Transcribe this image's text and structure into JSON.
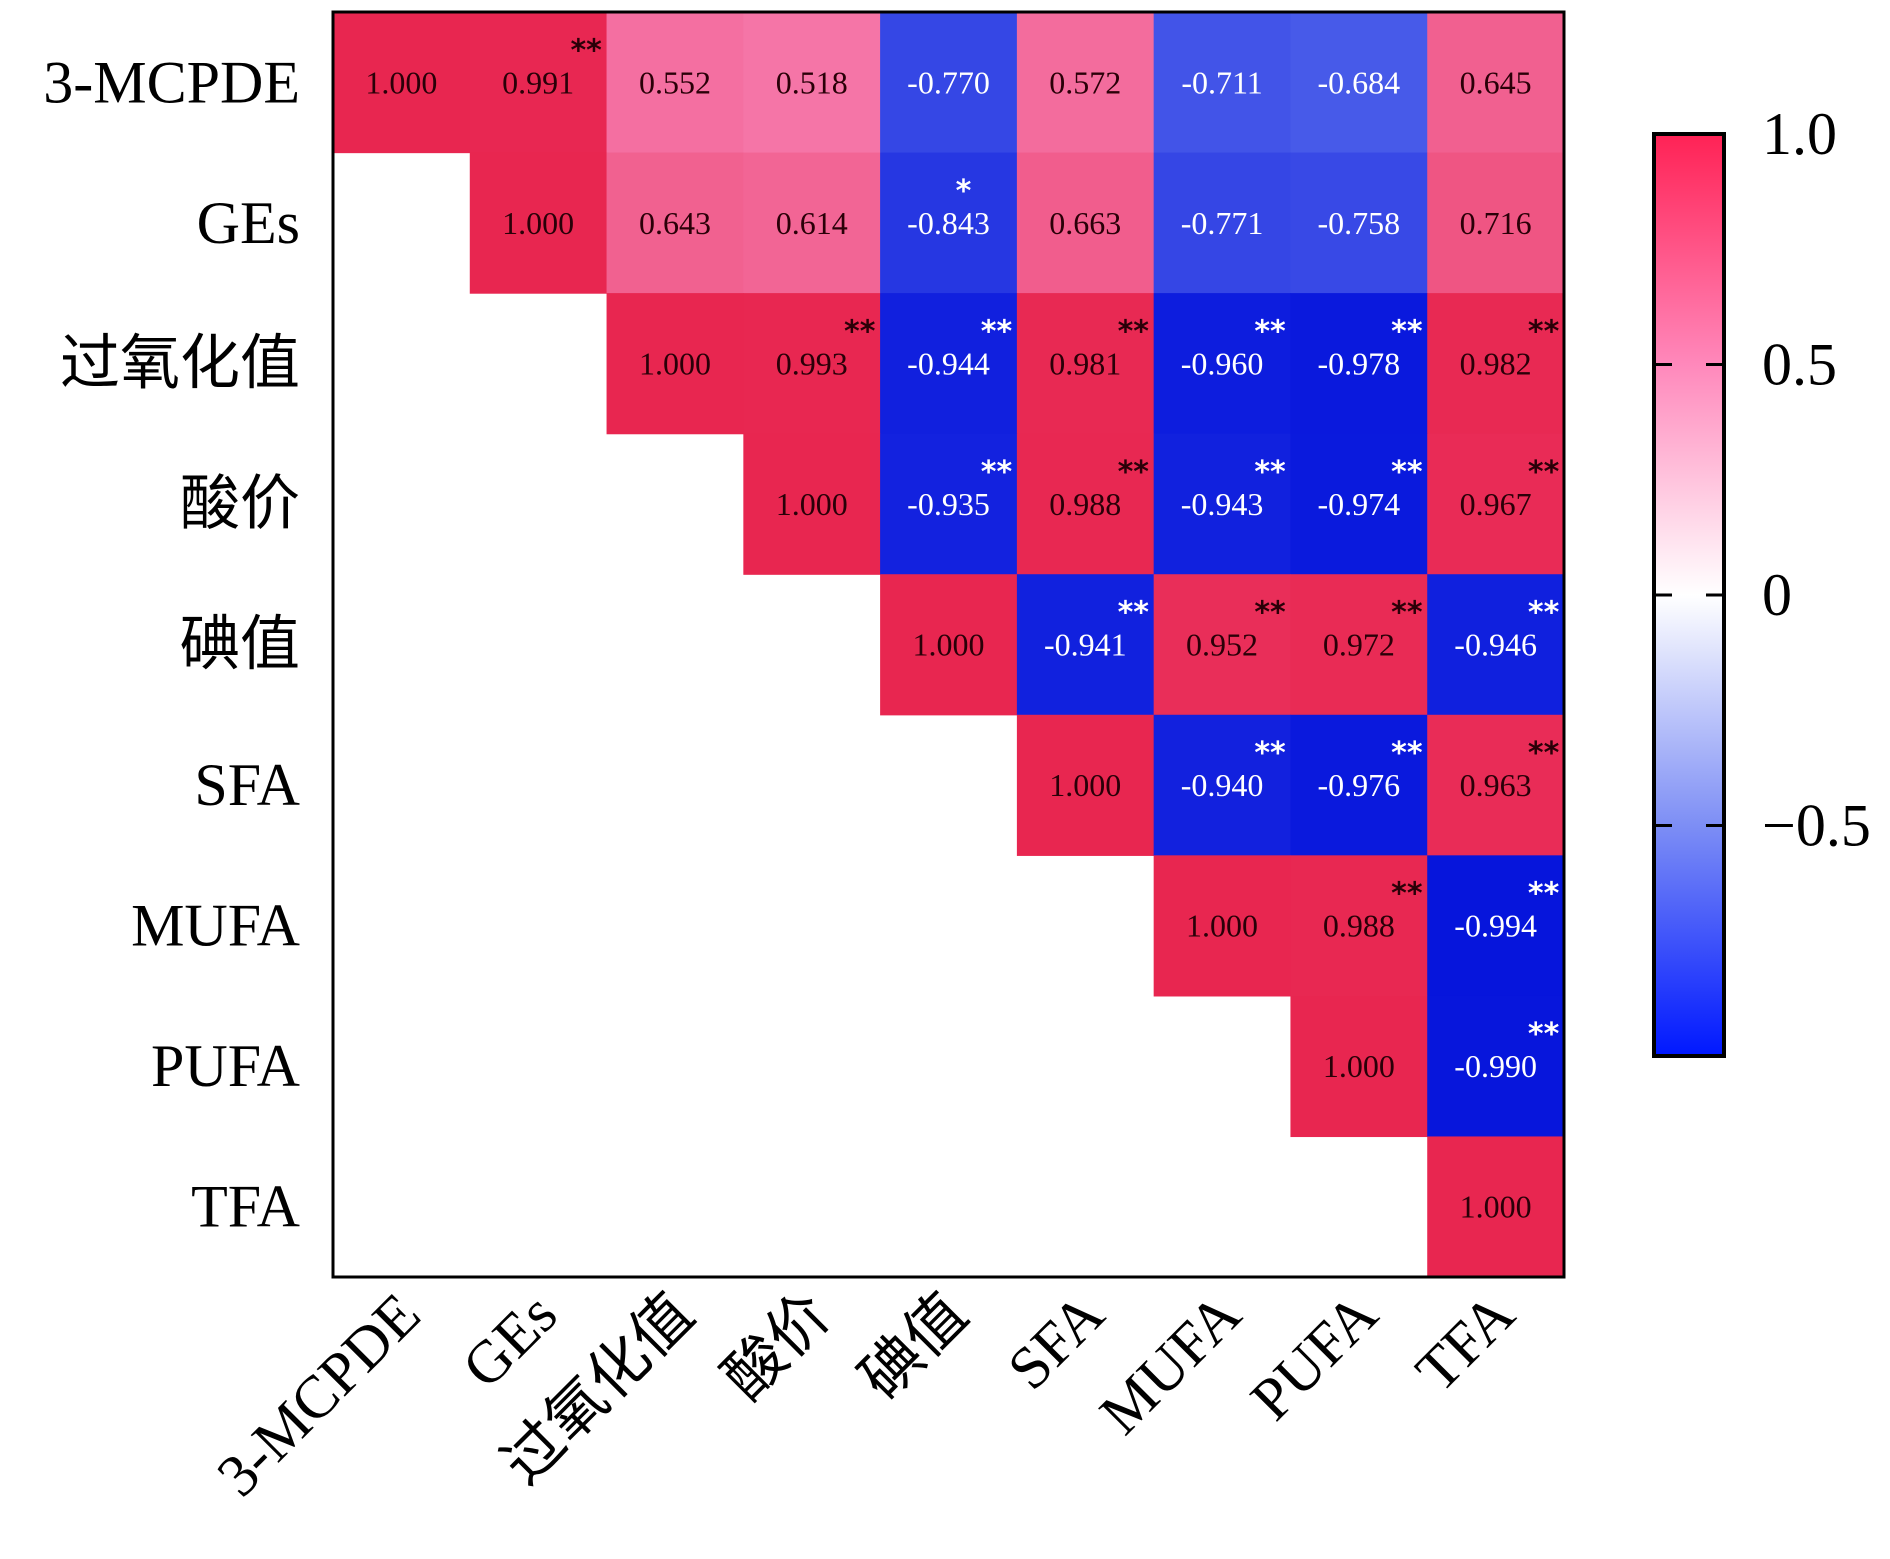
{
  "chart_data": {
    "type": "heatmap",
    "title": "",
    "variables": [
      "3-MCPDE",
      "GEs",
      "过氧化值",
      "酸价",
      "碘值",
      "SFA",
      "MUFA",
      "PUFA",
      "TFA"
    ],
    "matrix_shape": "upper-triangle",
    "values": [
      [
        1.0,
        0.991,
        0.552,
        0.518,
        -0.77,
        0.572,
        -0.711,
        -0.684,
        0.645
      ],
      [
        null,
        1.0,
        0.643,
        0.614,
        -0.843,
        0.663,
        -0.771,
        -0.758,
        0.716
      ],
      [
        null,
        null,
        1.0,
        0.993,
        -0.944,
        0.981,
        -0.96,
        -0.978,
        0.982
      ],
      [
        null,
        null,
        null,
        1.0,
        -0.935,
        0.988,
        -0.943,
        -0.974,
        0.967
      ],
      [
        null,
        null,
        null,
        null,
        1.0,
        -0.941,
        0.952,
        0.972,
        -0.946
      ],
      [
        null,
        null,
        null,
        null,
        null,
        1.0,
        -0.94,
        -0.976,
        0.963
      ],
      [
        null,
        null,
        null,
        null,
        null,
        null,
        1.0,
        0.988,
        -0.994
      ],
      [
        null,
        null,
        null,
        null,
        null,
        null,
        null,
        1.0,
        -0.99
      ],
      [
        null,
        null,
        null,
        null,
        null,
        null,
        null,
        null,
        1.0
      ]
    ],
    "significance": [
      [
        "",
        "**",
        "",
        "",
        "",
        "",
        "",
        "",
        ""
      ],
      [
        "",
        "",
        "",
        "",
        "*",
        "",
        "",
        "",
        ""
      ],
      [
        "",
        "",
        "",
        "**",
        "**",
        "**",
        "**",
        "**",
        "**"
      ],
      [
        "",
        "",
        "",
        "",
        "**",
        "**",
        "**",
        "**",
        "**"
      ],
      [
        "",
        "",
        "",
        "",
        "",
        "**",
        "**",
        "**",
        "**"
      ],
      [
        "",
        "",
        "",
        "",
        "",
        "",
        "**",
        "**",
        "**"
      ],
      [
        "",
        "",
        "",
        "",
        "",
        "",
        "",
        "**",
        "**"
      ],
      [
        "",
        "",
        "",
        "",
        "",
        "",
        "",
        "",
        "**"
      ],
      [
        "",
        "",
        "",
        "",
        "",
        "",
        "",
        "",
        ""
      ]
    ],
    "colorbar": {
      "range": [
        -1,
        1
      ],
      "ticks": [
        1.0,
        0.5,
        0,
        -0.5
      ],
      "tick_labels": [
        "1.0",
        "0.5",
        "0",
        "−0.5"
      ],
      "colors": {
        "max": "#e82650",
        "mid_pos": "#f578aa",
        "zero": "#ffffff",
        "mid_neg": "#6e82f0",
        "min": "#0514dc"
      }
    },
    "text_colors": {
      "positive": "#2a0008",
      "negative": "#ffffff"
    }
  }
}
